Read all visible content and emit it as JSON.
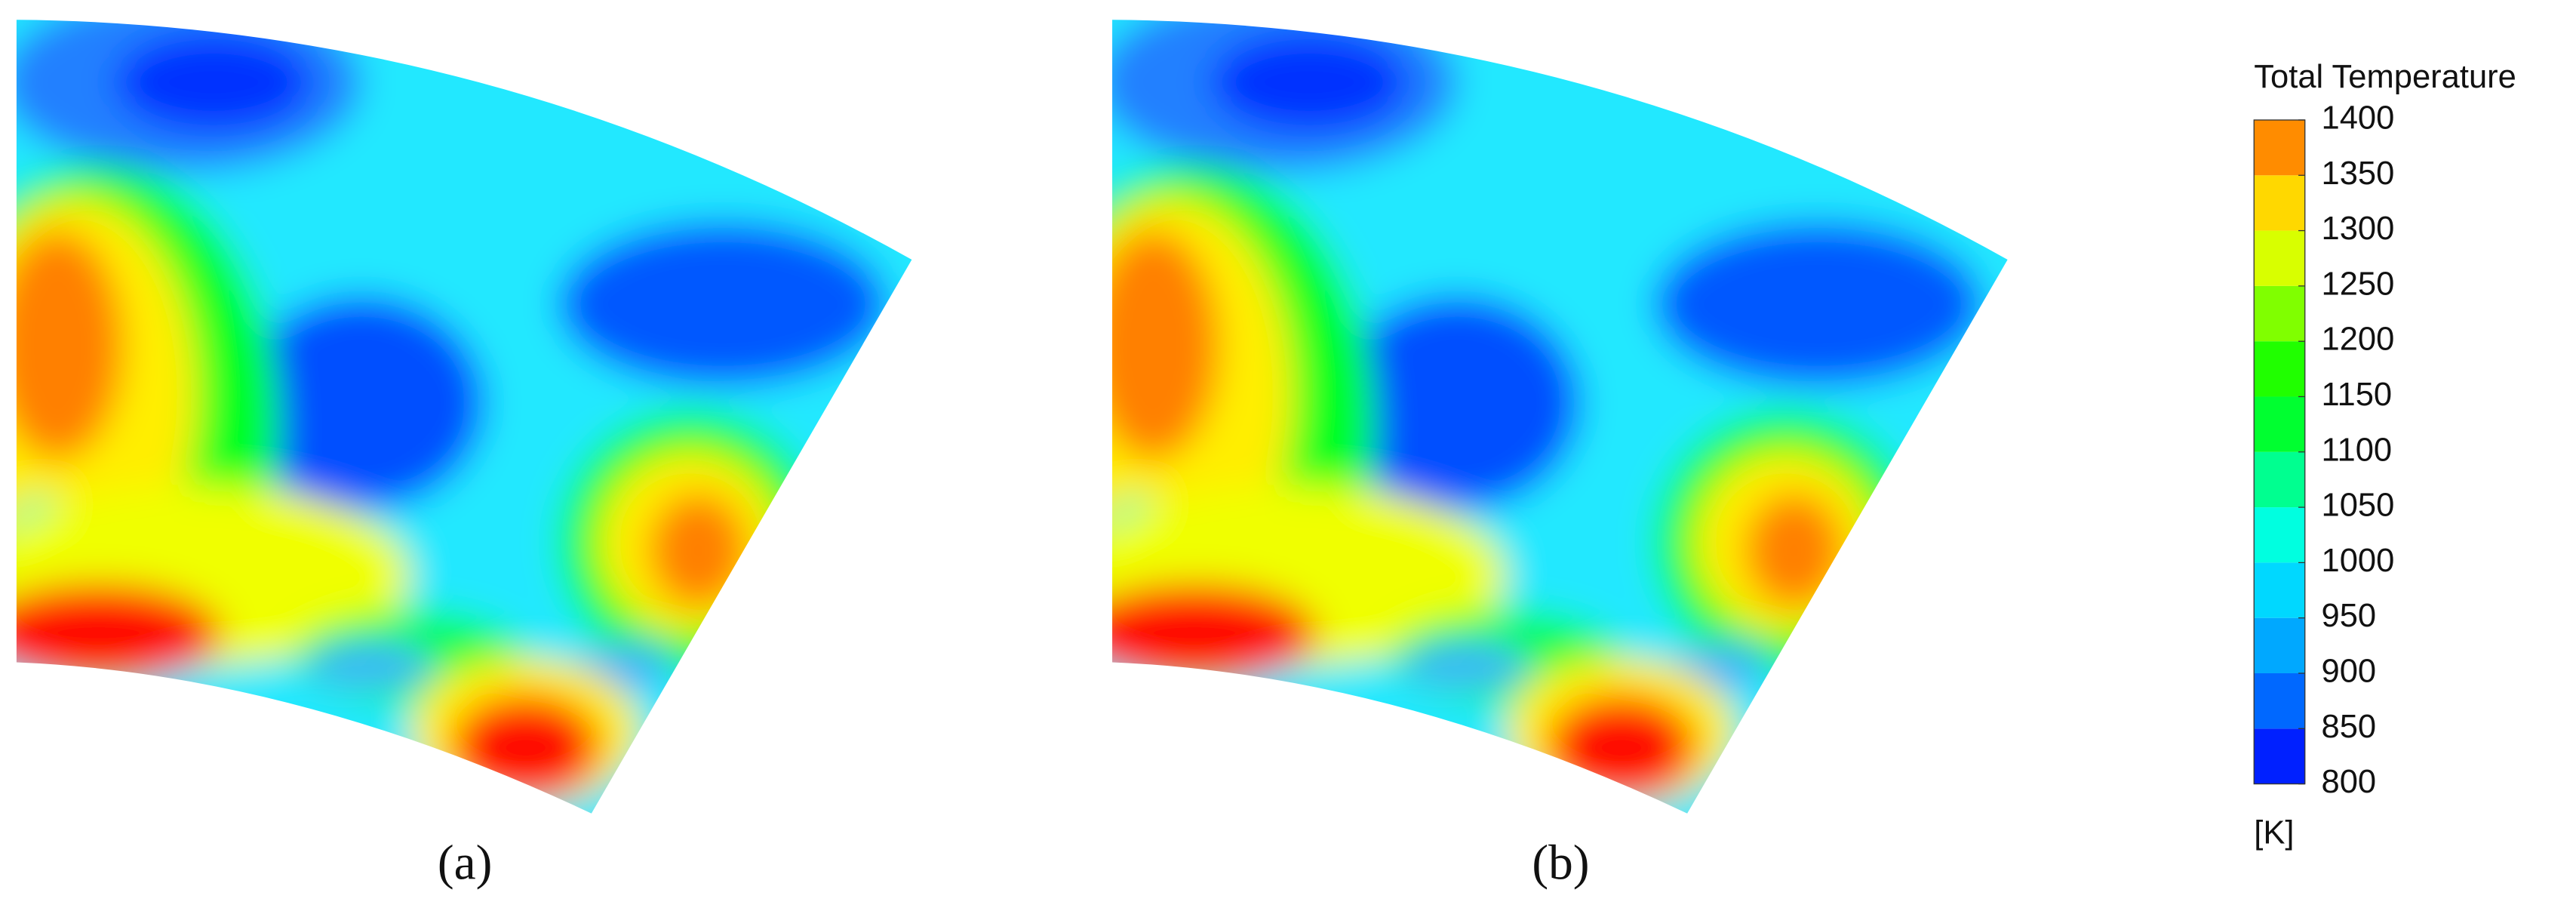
{
  "colorbar": {
    "title": "Total Temperature",
    "unit": "[K]",
    "ticks": [
      800,
      850,
      900,
      950,
      1000,
      1050,
      1100,
      1150,
      1200,
      1250,
      1300,
      1350,
      1400
    ],
    "colors": [
      "#0020ff",
      "#0068ff",
      "#00a8ff",
      "#00d8ff",
      "#00ffe0",
      "#00ff90",
      "#00ff30",
      "#20ff00",
      "#80ff00",
      "#d8ff00",
      "#ffd800",
      "#ff8c00",
      "#ff2a00"
    ]
  },
  "panels": [
    {
      "label": "(a)"
    },
    {
      "label": "(b)"
    }
  ]
}
